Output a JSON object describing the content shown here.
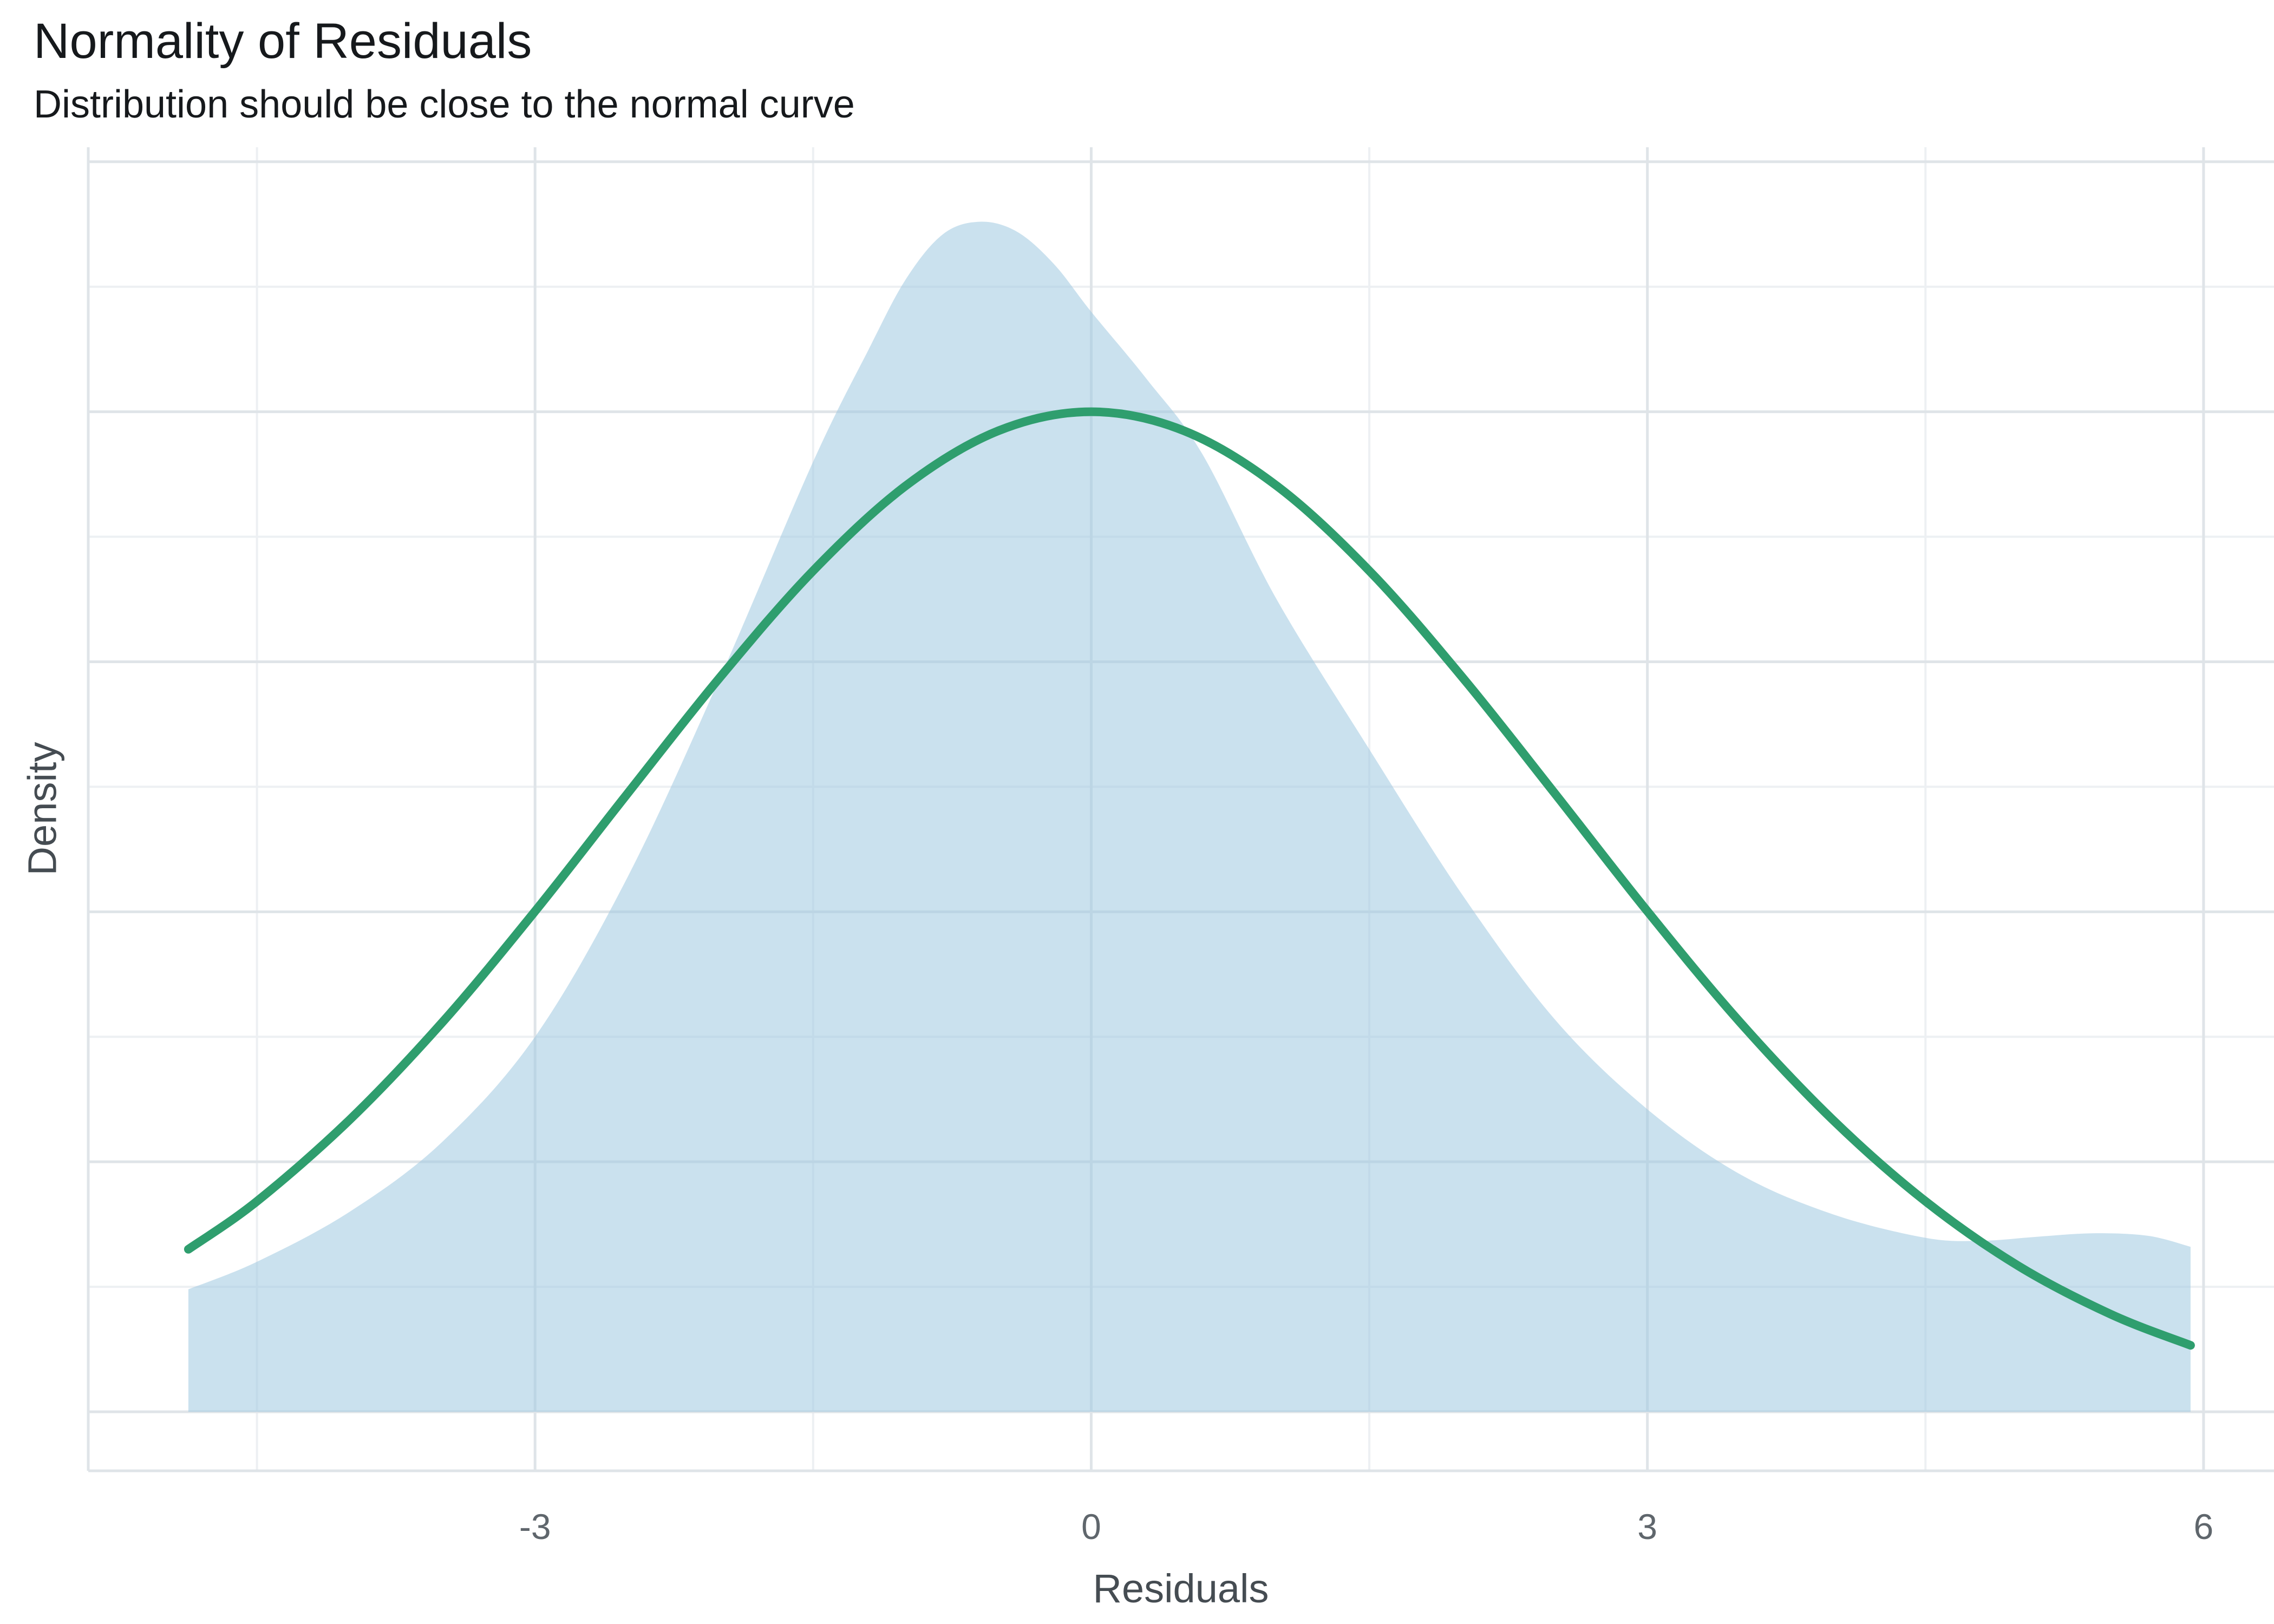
{
  "header": {
    "title": "Normality of Residuals",
    "subtitle": "Distribution should be close to the normal curve"
  },
  "axes": {
    "x_label": "Residuals",
    "y_label": "Density",
    "x_tick_labels": [
      "-3",
      "0",
      "3",
      "6"
    ]
  },
  "colors": {
    "background": "#ffffff",
    "grid_major": "#dfe4e8",
    "grid_minor": "#edf0f3",
    "axis_line": "#dfe4e8",
    "density_fill": "#9fc8e0",
    "normal_curve": "#2f9e6e",
    "title_text": "#16191c",
    "tick_text": "#5f666c",
    "axis_title_text": "#454c52"
  },
  "chart_data": {
    "type": "area",
    "title": "Normality of Residuals",
    "subtitle": "Distribution should be close to the normal curve",
    "xlabel": "Residuals",
    "ylabel": "Density",
    "xlim": [
      -5.41,
      6.38
    ],
    "ylim": [
      -0.0118,
      0.2529
    ],
    "grid": "on",
    "legend": "none",
    "x_major_ticks": [
      -3,
      0,
      3,
      6
    ],
    "x_minor_gridlines": [
      -4.5,
      -1.5,
      1.5,
      4.5
    ],
    "y_major_gridlines": [
      0,
      0.05,
      0.1,
      0.15,
      0.2,
      0.25
    ],
    "y_minor_gridlines": [
      0.025,
      0.075,
      0.125,
      0.175,
      0.225
    ],
    "series": [
      {
        "name": "residuals-kernel-density",
        "type": "area",
        "color": "#9fc8e0",
        "fill_opacity": 0.55,
        "x": [
          -4.87,
          -4.5,
          -4.0,
          -3.5,
          -3.0,
          -2.5,
          -2.0,
          -1.5,
          -1.2,
          -1.0,
          -0.8,
          -0.6,
          -0.4,
          -0.2,
          0.0,
          0.3,
          0.6,
          1.0,
          1.5,
          2.0,
          2.5,
          3.0,
          3.5,
          4.0,
          4.5,
          4.8,
          5.1,
          5.4,
          5.7,
          5.93
        ],
        "y": [
          0.0245,
          0.03,
          0.04,
          0.054,
          0.075,
          0.107,
          0.147,
          0.19,
          0.2125,
          0.2265,
          0.2355,
          0.238,
          0.236,
          0.2295,
          0.22,
          0.2065,
          0.1915,
          0.1625,
          0.1325,
          0.1035,
          0.0785,
          0.0605,
          0.0475,
          0.0395,
          0.0348,
          0.0342,
          0.035,
          0.0357,
          0.0352,
          0.033
        ]
      },
      {
        "name": "normal-curve",
        "type": "line",
        "color": "#2f9e6e",
        "stroke_width": 16,
        "x": [
          -4.87,
          -4.5,
          -4.0,
          -3.5,
          -3.0,
          -2.5,
          -2.0,
          -1.5,
          -1.0,
          -0.5,
          0.0,
          0.5,
          1.0,
          1.5,
          2.0,
          2.5,
          3.0,
          3.5,
          4.0,
          4.5,
          5.0,
          5.5,
          5.93
        ],
        "y": [
          0.0325,
          0.0421,
          0.0584,
          0.0779,
          0.1001,
          0.1237,
          0.147,
          0.1682,
          0.1852,
          0.1962,
          0.2,
          0.1962,
          0.1852,
          0.1682,
          0.147,
          0.1237,
          0.1001,
          0.0779,
          0.0584,
          0.0421,
          0.0292,
          0.0195,
          0.0133
        ]
      }
    ]
  }
}
